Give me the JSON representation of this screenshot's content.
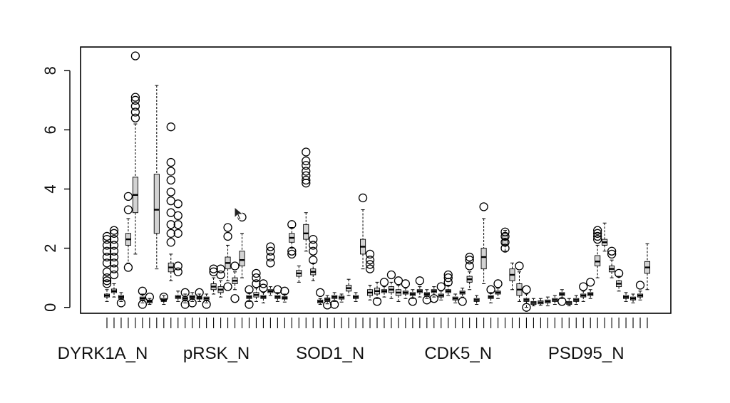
{
  "chart_data": {
    "type": "boxplot",
    "title": "",
    "xlabel": "",
    "ylabel": "",
    "ylim": [
      -0.2,
      8.8
    ],
    "yticks": [
      0,
      2,
      4,
      6,
      8
    ],
    "ytick_labels": [
      "0",
      "2",
      "4",
      "6",
      "8"
    ],
    "n_boxes": 77,
    "category_labels": [
      {
        "index": 0,
        "text": "DYRK1A_N"
      },
      {
        "index": 16,
        "text": "pRSK_N"
      },
      {
        "index": 32,
        "text": "SOD1_N"
      },
      {
        "index": 50,
        "text": "CDK5_N"
      },
      {
        "index": 68,
        "text": "PSD95_N"
      }
    ],
    "box_fill": "#d3d3d3",
    "stroke": "#000000",
    "boxes": [
      {
        "q1": 0.35,
        "med": 0.4,
        "q3": 0.45,
        "wlo": 0.2,
        "whi": 0.6,
        "out": [
          0.8,
          0.9,
          1.0,
          1.2,
          1.5,
          1.7,
          1.9,
          2.1,
          2.3,
          2.4
        ]
      },
      {
        "q1": 0.5,
        "med": 0.55,
        "q3": 0.62,
        "wlo": 0.35,
        "whi": 0.8,
        "out": [
          1.1,
          1.3,
          1.5,
          1.7,
          1.9,
          2.1,
          2.3,
          2.5,
          2.6
        ]
      },
      {
        "q1": 0.3,
        "med": 0.35,
        "q3": 0.4,
        "wlo": 0.2,
        "whi": 0.5,
        "out": [
          0.15
        ]
      },
      {
        "q1": 2.1,
        "med": 2.3,
        "q3": 2.5,
        "wlo": 1.5,
        "whi": 3.0,
        "out": [
          1.35,
          3.3,
          3.75
        ]
      },
      {
        "q1": 3.2,
        "med": 3.8,
        "q3": 4.4,
        "wlo": 1.8,
        "whi": 6.2,
        "out": [
          6.4,
          6.6,
          6.8,
          7.0,
          7.1,
          8.5
        ]
      },
      {
        "q1": 0.25,
        "med": 0.3,
        "q3": 0.35,
        "wlo": 0.15,
        "whi": 0.45,
        "out": [
          0.1,
          0.55
        ]
      },
      {
        "q1": 0.15,
        "med": 0.2,
        "q3": 0.25,
        "wlo": 0.1,
        "whi": 0.3,
        "out": [
          0.35
        ]
      },
      {
        "q1": 2.5,
        "med": 3.3,
        "q3": 4.5,
        "wlo": 1.3,
        "whi": 7.5,
        "out": []
      },
      {
        "q1": 0.2,
        "med": 0.25,
        "q3": 0.3,
        "wlo": 0.1,
        "whi": 0.4,
        "out": [
          0.35
        ]
      },
      {
        "q1": 1.2,
        "med": 1.35,
        "q3": 1.5,
        "wlo": 0.9,
        "whi": 1.8,
        "out": [
          2.2,
          2.5,
          2.8,
          3.2,
          3.6,
          3.9,
          4.3,
          4.6,
          4.9,
          6.1
        ]
      },
      {
        "q1": 0.3,
        "med": 0.35,
        "q3": 0.4,
        "wlo": 0.2,
        "whi": 0.55,
        "out": [
          1.2,
          1.4,
          2.5,
          2.8,
          3.1,
          3.5
        ]
      },
      {
        "q1": 0.25,
        "med": 0.3,
        "q3": 0.35,
        "wlo": 0.15,
        "whi": 0.45,
        "out": [
          0.1,
          0.5
        ]
      },
      {
        "q1": 0.3,
        "med": 0.35,
        "q3": 0.4,
        "wlo": 0.2,
        "whi": 0.5,
        "out": [
          0.15
        ]
      },
      {
        "q1": 0.28,
        "med": 0.32,
        "q3": 0.36,
        "wlo": 0.2,
        "whi": 0.45,
        "out": [
          0.5
        ]
      },
      {
        "q1": 0.25,
        "med": 0.3,
        "q3": 0.35,
        "wlo": 0.15,
        "whi": 0.45,
        "out": [
          0.1
        ]
      },
      {
        "q1": 0.6,
        "med": 0.7,
        "q3": 0.8,
        "wlo": 0.45,
        "whi": 1.0,
        "out": [
          1.2,
          1.3
        ]
      },
      {
        "q1": 0.5,
        "med": 0.6,
        "q3": 0.7,
        "wlo": 0.35,
        "whi": 0.9,
        "out": [
          1.1,
          1.3
        ]
      },
      {
        "q1": 1.3,
        "med": 1.5,
        "q3": 1.7,
        "wlo": 0.9,
        "whi": 2.1,
        "out": [
          0.7,
          2.4,
          2.7
        ]
      },
      {
        "q1": 0.8,
        "med": 0.9,
        "q3": 1.0,
        "wlo": 0.6,
        "whi": 1.2,
        "out": [
          0.3,
          1.4
        ]
      },
      {
        "q1": 1.4,
        "med": 1.6,
        "q3": 1.9,
        "wlo": 1.0,
        "whi": 2.5,
        "out": [
          3.05
        ]
      },
      {
        "q1": 0.3,
        "med": 0.35,
        "q3": 0.4,
        "wlo": 0.2,
        "whi": 0.5,
        "out": [
          0.1,
          0.6
        ]
      },
      {
        "q1": 0.35,
        "med": 0.42,
        "q3": 0.5,
        "wlo": 0.2,
        "whi": 0.65,
        "out": [
          0.8,
          1.0,
          1.15
        ]
      },
      {
        "q1": 0.3,
        "med": 0.35,
        "q3": 0.4,
        "wlo": 0.15,
        "whi": 0.5,
        "out": [
          0.65,
          0.8
        ]
      },
      {
        "q1": 0.5,
        "med": 0.55,
        "q3": 0.6,
        "wlo": 0.4,
        "whi": 0.7,
        "out": [
          1.5,
          1.7,
          1.9,
          2.05
        ]
      },
      {
        "q1": 0.3,
        "med": 0.35,
        "q3": 0.4,
        "wlo": 0.2,
        "whi": 0.5,
        "out": [
          0.6
        ]
      },
      {
        "q1": 0.28,
        "med": 0.32,
        "q3": 0.36,
        "wlo": 0.18,
        "whi": 0.45,
        "out": [
          0.55
        ]
      },
      {
        "q1": 2.2,
        "med": 2.35,
        "q3": 2.5,
        "wlo": 2.0,
        "whi": 2.7,
        "out": [
          1.8,
          1.9,
          2.8
        ]
      },
      {
        "q1": 1.05,
        "med": 1.15,
        "q3": 1.25,
        "wlo": 0.85,
        "whi": 1.4,
        "out": []
      },
      {
        "q1": 2.3,
        "med": 2.5,
        "q3": 2.8,
        "wlo": 1.9,
        "whi": 3.2,
        "out": [
          4.2,
          4.3,
          4.45,
          4.6,
          4.8,
          4.95,
          5.25
        ]
      },
      {
        "q1": 1.1,
        "med": 1.2,
        "q3": 1.3,
        "wlo": 0.9,
        "whi": 1.5,
        "out": [
          1.6,
          1.9,
          2.1,
          2.3
        ]
      },
      {
        "q1": 0.15,
        "med": 0.2,
        "q3": 0.25,
        "wlo": 0.1,
        "whi": 0.3,
        "out": [
          0.5
        ]
      },
      {
        "q1": 0.22,
        "med": 0.27,
        "q3": 0.32,
        "wlo": 0.12,
        "whi": 0.4,
        "out": [
          0.08
        ]
      },
      {
        "q1": 0.3,
        "med": 0.35,
        "q3": 0.4,
        "wlo": 0.2,
        "whi": 0.5,
        "out": [
          0.1
        ]
      },
      {
        "q1": 0.28,
        "med": 0.33,
        "q3": 0.38,
        "wlo": 0.18,
        "whi": 0.45,
        "out": []
      },
      {
        "q1": 0.55,
        "med": 0.65,
        "q3": 0.75,
        "wlo": 0.4,
        "whi": 0.95,
        "out": []
      },
      {
        "q1": 0.3,
        "med": 0.35,
        "q3": 0.4,
        "wlo": 0.2,
        "whi": 0.5,
        "out": []
      },
      {
        "q1": 1.8,
        "med": 2.05,
        "q3": 2.3,
        "wlo": 1.3,
        "whi": 3.3,
        "out": [
          3.7
        ]
      },
      {
        "q1": 0.4,
        "med": 0.5,
        "q3": 0.6,
        "wlo": 0.25,
        "whi": 0.75,
        "out": [
          1.3,
          1.45,
          1.6,
          1.8
        ]
      },
      {
        "q1": 0.45,
        "med": 0.55,
        "q3": 0.65,
        "wlo": 0.3,
        "whi": 0.85,
        "out": [
          0.2
        ]
      },
      {
        "q1": 0.5,
        "med": 0.55,
        "q3": 0.6,
        "wlo": 0.35,
        "whi": 0.7,
        "out": [
          0.85
        ]
      },
      {
        "q1": 0.5,
        "med": 0.6,
        "q3": 0.7,
        "wlo": 0.3,
        "whi": 0.85,
        "out": [
          1.1
        ]
      },
      {
        "q1": 0.4,
        "med": 0.5,
        "q3": 0.6,
        "wlo": 0.2,
        "whi": 0.75,
        "out": [
          0.9
        ]
      },
      {
        "q1": 0.45,
        "med": 0.5,
        "q3": 0.55,
        "wlo": 0.3,
        "whi": 0.65,
        "out": [
          0.8
        ]
      },
      {
        "q1": 0.4,
        "med": 0.45,
        "q3": 0.5,
        "wlo": 0.3,
        "whi": 0.6,
        "out": [
          0.2
        ]
      },
      {
        "q1": 0.5,
        "med": 0.55,
        "q3": 0.6,
        "wlo": 0.35,
        "whi": 0.7,
        "out": [
          0.9
        ]
      },
      {
        "q1": 0.4,
        "med": 0.45,
        "q3": 0.5,
        "wlo": 0.3,
        "whi": 0.6,
        "out": [
          0.25
        ]
      },
      {
        "q1": 0.5,
        "med": 0.55,
        "q3": 0.6,
        "wlo": 0.35,
        "whi": 0.7,
        "out": [
          0.3
        ]
      },
      {
        "q1": 0.35,
        "med": 0.4,
        "q3": 0.45,
        "wlo": 0.25,
        "whi": 0.55,
        "out": [
          0.7
        ]
      },
      {
        "q1": 0.5,
        "med": 0.55,
        "q3": 0.6,
        "wlo": 0.4,
        "whi": 0.75,
        "out": [
          0.85,
          1.0,
          1.1
        ]
      },
      {
        "q1": 0.25,
        "med": 0.3,
        "q3": 0.35,
        "wlo": 0.15,
        "whi": 0.45,
        "out": []
      },
      {
        "q1": 0.45,
        "med": 0.5,
        "q3": 0.55,
        "wlo": 0.35,
        "whi": 0.65,
        "out": [
          0.2
        ]
      },
      {
        "q1": 0.85,
        "med": 0.95,
        "q3": 1.05,
        "wlo": 0.6,
        "whi": 1.2,
        "out": [
          1.4,
          1.6,
          1.7
        ]
      },
      {
        "q1": 0.2,
        "med": 0.25,
        "q3": 0.3,
        "wlo": 0.1,
        "whi": 0.4,
        "out": []
      },
      {
        "q1": 1.3,
        "med": 1.7,
        "q3": 2.0,
        "wlo": 0.8,
        "whi": 3.0,
        "out": [
          3.4
        ]
      },
      {
        "q1": 0.3,
        "med": 0.35,
        "q3": 0.4,
        "wlo": 0.15,
        "whi": 0.5,
        "out": [
          0.6
        ]
      },
      {
        "q1": 0.45,
        "med": 0.5,
        "q3": 0.55,
        "wlo": 0.3,
        "whi": 0.65,
        "out": [
          0.8
        ]
      },
      {
        "q1": 2.1,
        "med": 2.3,
        "q3": 2.5,
        "wlo": 1.9,
        "whi": 2.6,
        "out": [
          2.0,
          2.2,
          2.4,
          2.55
        ]
      },
      {
        "q1": 0.9,
        "med": 1.1,
        "q3": 1.3,
        "wlo": 0.6,
        "whi": 1.5,
        "out": []
      },
      {
        "q1": 0.4,
        "med": 0.6,
        "q3": 0.8,
        "wlo": 0.2,
        "whi": 1.2,
        "out": [
          1.4
        ]
      },
      {
        "q1": 0.2,
        "med": 0.25,
        "q3": 0.3,
        "wlo": 0.0,
        "whi": 0.45,
        "out": [
          0.0,
          0.6
        ]
      },
      {
        "q1": 0.1,
        "med": 0.15,
        "q3": 0.2,
        "wlo": 0.05,
        "whi": 0.3,
        "out": []
      },
      {
        "q1": 0.12,
        "med": 0.17,
        "q3": 0.22,
        "wlo": 0.07,
        "whi": 0.3,
        "out": []
      },
      {
        "q1": 0.15,
        "med": 0.2,
        "q3": 0.25,
        "wlo": 0.05,
        "whi": 0.35,
        "out": []
      },
      {
        "q1": 0.2,
        "med": 0.25,
        "q3": 0.3,
        "wlo": 0.1,
        "whi": 0.4,
        "out": []
      },
      {
        "q1": 0.4,
        "med": 0.45,
        "q3": 0.5,
        "wlo": 0.3,
        "whi": 0.6,
        "out": [
          0.2
        ]
      },
      {
        "q1": 0.1,
        "med": 0.15,
        "q3": 0.2,
        "wlo": 0.05,
        "whi": 0.3,
        "out": []
      },
      {
        "q1": 0.2,
        "med": 0.25,
        "q3": 0.3,
        "wlo": 0.1,
        "whi": 0.4,
        "out": []
      },
      {
        "q1": 0.35,
        "med": 0.4,
        "q3": 0.45,
        "wlo": 0.2,
        "whi": 0.55,
        "out": [
          0.7
        ]
      },
      {
        "q1": 0.4,
        "med": 0.45,
        "q3": 0.5,
        "wlo": 0.3,
        "whi": 0.6,
        "out": [
          0.85
        ]
      },
      {
        "q1": 1.4,
        "med": 1.55,
        "q3": 1.75,
        "wlo": 1.0,
        "whi": 2.1,
        "out": [
          2.3,
          2.4,
          2.5,
          2.6
        ]
      },
      {
        "q1": 2.1,
        "med": 2.2,
        "q3": 2.3,
        "wlo": 1.9,
        "whi": 2.85,
        "out": []
      },
      {
        "q1": 1.2,
        "med": 1.3,
        "q3": 1.4,
        "wlo": 1.0,
        "whi": 1.6,
        "out": [
          1.8,
          1.9
        ]
      },
      {
        "q1": 0.7,
        "med": 0.8,
        "q3": 0.9,
        "wlo": 0.55,
        "whi": 1.05,
        "out": [
          1.15
        ]
      },
      {
        "q1": 0.3,
        "med": 0.35,
        "q3": 0.4,
        "wlo": 0.2,
        "whi": 0.5,
        "out": []
      },
      {
        "q1": 0.25,
        "med": 0.3,
        "q3": 0.35,
        "wlo": 0.15,
        "whi": 0.45,
        "out": []
      },
      {
        "q1": 0.35,
        "med": 0.4,
        "q3": 0.45,
        "wlo": 0.25,
        "whi": 0.55,
        "out": [
          0.75
        ]
      },
      {
        "q1": 1.15,
        "med": 1.35,
        "q3": 1.55,
        "wlo": 0.6,
        "whi": 2.15,
        "out": []
      }
    ]
  },
  "annotations": {
    "cursor_icon": "mouse-pointer-icon"
  }
}
